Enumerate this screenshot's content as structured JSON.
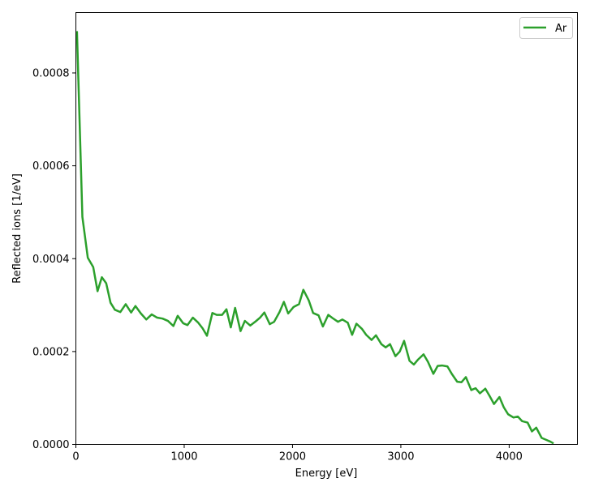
{
  "chart_data": {
    "type": "line",
    "title": "",
    "xlabel": "Energy [eV]",
    "ylabel": "Reflected ions [1/eV]",
    "xlim": [
      0,
      4630
    ],
    "ylim": [
      0,
      0.00093
    ],
    "xticks": [
      0,
      1000,
      2000,
      3000,
      4000
    ],
    "xtick_labels": [
      "0",
      "1000",
      "2000",
      "3000",
      "4000"
    ],
    "yticks": [
      0,
      0.0002,
      0.0004,
      0.0006,
      0.0008
    ],
    "ytick_labels": [
      "0.0000",
      "0.0002",
      "0.0004",
      "0.0006",
      "0.0008"
    ],
    "grid": false,
    "legend_position": "top-right",
    "series": [
      {
        "name": "Ar",
        "color": "#2ca02c",
        "x": [
          10,
          60,
          110,
          160,
          200,
          240,
          280,
          320,
          360,
          410,
          460,
          510,
          550,
          600,
          650,
          700,
          750,
          800,
          850,
          900,
          940,
          990,
          1030,
          1080,
          1130,
          1170,
          1210,
          1260,
          1300,
          1350,
          1390,
          1430,
          1470,
          1520,
          1560,
          1610,
          1660,
          1700,
          1740,
          1790,
          1830,
          1880,
          1920,
          1960,
          2010,
          2060,
          2100,
          2150,
          2190,
          2240,
          2280,
          2330,
          2370,
          2420,
          2460,
          2510,
          2550,
          2590,
          2640,
          2680,
          2730,
          2770,
          2820,
          2860,
          2900,
          2950,
          2990,
          3030,
          3080,
          3120,
          3160,
          3210,
          3250,
          3300,
          3340,
          3380,
          3430,
          3470,
          3520,
          3560,
          3600,
          3650,
          3690,
          3730,
          3780,
          3820,
          3860,
          3910,
          3950,
          3990,
          4040,
          4080,
          4120,
          4170,
          4210,
          4250,
          4300,
          4340,
          4380,
          4410
        ],
        "y": [
          0.00089,
          0.00049,
          0.000402,
          0.000382,
          0.00033,
          0.00036,
          0.000347,
          0.000305,
          0.00029,
          0.000285,
          0.000302,
          0.000284,
          0.000298,
          0.000282,
          0.000269,
          0.00028,
          0.000273,
          0.000271,
          0.000266,
          0.000255,
          0.000277,
          0.000261,
          0.000257,
          0.000273,
          0.000262,
          0.00025,
          0.000234,
          0.000283,
          0.000279,
          0.000279,
          0.000291,
          0.000252,
          0.000294,
          0.000244,
          0.000266,
          0.000256,
          0.000265,
          0.000273,
          0.000284,
          0.000259,
          0.000264,
          0.000285,
          0.000307,
          0.000282,
          0.000296,
          0.000302,
          0.000333,
          0.00031,
          0.000283,
          0.000278,
          0.000254,
          0.000279,
          0.000272,
          0.000264,
          0.000269,
          0.000262,
          0.000236,
          0.00026,
          0.000249,
          0.000236,
          0.000225,
          0.000235,
          0.000216,
          0.000209,
          0.000216,
          0.00019,
          0.0002,
          0.000223,
          0.00018,
          0.000172,
          0.000183,
          0.000194,
          0.000178,
          0.000152,
          0.000169,
          0.00017,
          0.000168,
          0.000152,
          0.000135,
          0.000134,
          0.000145,
          0.000117,
          0.000121,
          0.00011,
          0.00012,
          0.000104,
          8.7e-05,
          0.000102,
          8e-05,
          6.5e-05,
          5.8e-05,
          6e-05,
          5e-05,
          4.7e-05,
          2.8e-05,
          3.6e-05,
          1.4e-05,
          1e-05,
          6e-06,
          2e-06
        ]
      }
    ]
  }
}
